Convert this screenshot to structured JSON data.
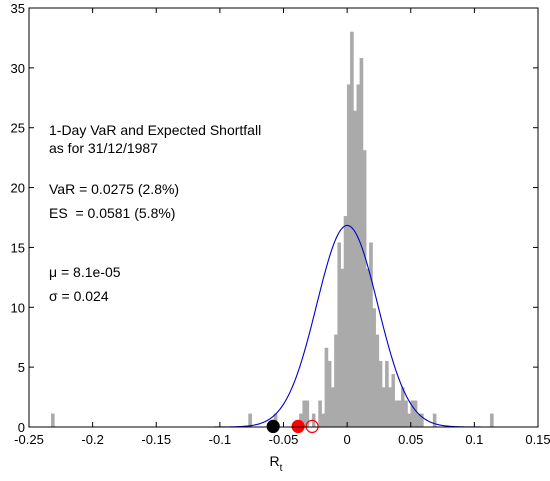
{
  "chart_data": {
    "type": "histogram",
    "xlabel": "R",
    "xlabel_sub": "t",
    "ylabel": "",
    "xlim": [
      -0.25,
      0.15
    ],
    "ylim": [
      0,
      35
    ],
    "xticks": [
      -0.25,
      -0.2,
      -0.15,
      -0.1,
      -0.05,
      0,
      0.05,
      0.1,
      0.15
    ],
    "xtick_labels": [
      "-0.25",
      "-0.2",
      "-0.15",
      "-0.1",
      "-0.05",
      "0",
      "0.05",
      "0.1",
      "0.15"
    ],
    "yticks": [
      0,
      5,
      10,
      15,
      20,
      25,
      30,
      35
    ],
    "ytick_labels": [
      "0",
      "5",
      "10",
      "15",
      "20",
      "25",
      "30",
      "35"
    ],
    "grid": false,
    "bin_width": 0.0025,
    "bars": [
      {
        "x": -0.2325,
        "y": 1.1
      },
      {
        "x": -0.0775,
        "y": 1.1
      },
      {
        "x": -0.0575,
        "y": 1.1
      },
      {
        "x": -0.0375,
        "y": 1.1
      },
      {
        "x": -0.035,
        "y": 2.2
      },
      {
        "x": -0.0325,
        "y": 2.2
      },
      {
        "x": -0.0275,
        "y": 1.1
      },
      {
        "x": -0.0225,
        "y": 2.2
      },
      {
        "x": -0.02,
        "y": 1.1
      },
      {
        "x": -0.0175,
        "y": 6.6
      },
      {
        "x": -0.015,
        "y": 5.5
      },
      {
        "x": -0.0125,
        "y": 3.3
      },
      {
        "x": -0.01,
        "y": 7.7
      },
      {
        "x": -0.0075,
        "y": 15.4
      },
      {
        "x": -0.005,
        "y": 13.2
      },
      {
        "x": -0.0025,
        "y": 17.6
      },
      {
        "x": 0.0,
        "y": 28.6
      },
      {
        "x": 0.0025,
        "y": 33.0
      },
      {
        "x": 0.005,
        "y": 26.4
      },
      {
        "x": 0.0075,
        "y": 28.6
      },
      {
        "x": 0.01,
        "y": 30.8
      },
      {
        "x": 0.0125,
        "y": 23.1
      },
      {
        "x": 0.015,
        "y": 13.2
      },
      {
        "x": 0.0175,
        "y": 15.4
      },
      {
        "x": 0.02,
        "y": 9.9
      },
      {
        "x": 0.0225,
        "y": 7.7
      },
      {
        "x": 0.025,
        "y": 5.5
      },
      {
        "x": 0.0275,
        "y": 3.3
      },
      {
        "x": 0.03,
        "y": 5.5
      },
      {
        "x": 0.0325,
        "y": 3.3
      },
      {
        "x": 0.035,
        "y": 4.4
      },
      {
        "x": 0.0375,
        "y": 2.2
      },
      {
        "x": 0.04,
        "y": 2.2
      },
      {
        "x": 0.0425,
        "y": 3.3
      },
      {
        "x": 0.045,
        "y": 2.2
      },
      {
        "x": 0.0475,
        "y": 1.1
      },
      {
        "x": 0.05,
        "y": 2.2
      },
      {
        "x": 0.0525,
        "y": 2.2
      },
      {
        "x": 0.055,
        "y": 1.1
      },
      {
        "x": 0.0575,
        "y": 1.1
      },
      {
        "x": 0.0675,
        "y": 1.1
      },
      {
        "x": 0.1125,
        "y": 1.1
      }
    ],
    "curve": {
      "type": "normal_pdf",
      "mu": 8.1e-05,
      "sigma": 0.024,
      "scale": 1.013,
      "color": "#0000cc"
    },
    "markers": [
      {
        "x": -0.0581,
        "y": 0.05,
        "style": "filled",
        "color": "#000000"
      },
      {
        "x": -0.0385,
        "y": 0.05,
        "style": "filled",
        "color": "#ff0000"
      },
      {
        "x": -0.0275,
        "y": 0.05,
        "style": "open",
        "color": "#ff0000"
      }
    ],
    "bar_color": "#aaaaaa"
  },
  "annotations": {
    "title_line1": "1-Day VaR and Expected Shortfall",
    "title_line2": "as for 31/12/1987",
    "var_text": "VaR = 0.0275 (2.8%)",
    "es_text": "ES  = 0.0581 (5.8%)",
    "mu_symbol": "μ",
    "mu_text": " = 8.1e-05",
    "sigma_symbol": "σ",
    "sigma_text": " = 0.024"
  }
}
